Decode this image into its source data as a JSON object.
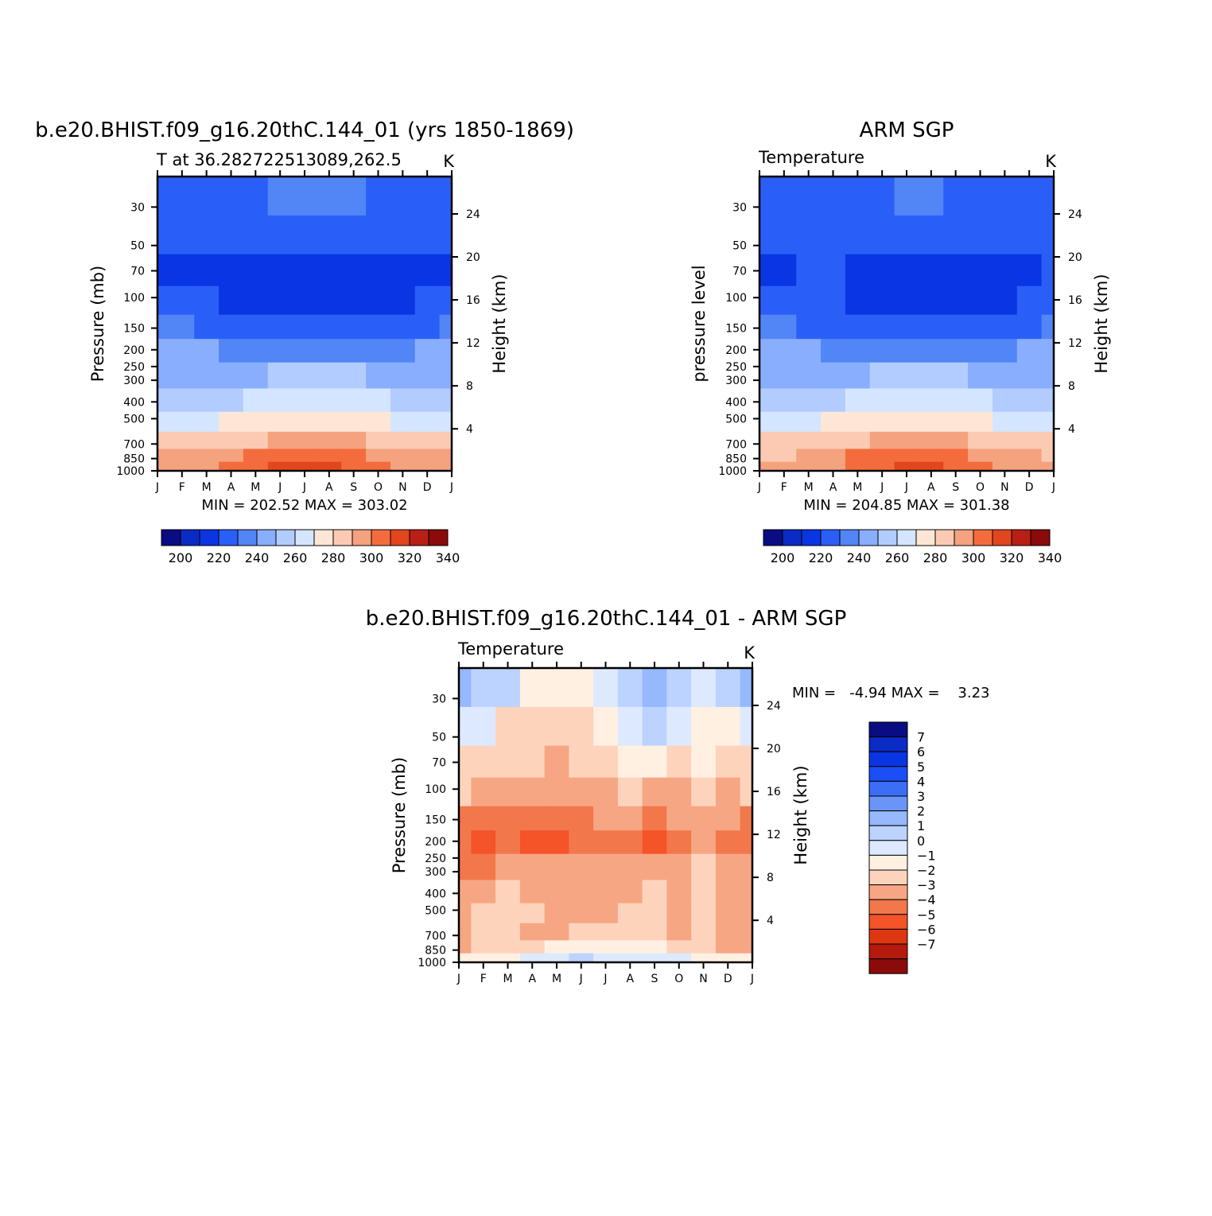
{
  "chart_data": [
    {
      "type": "heatmap",
      "title": "b.e20.BHIST.f09_g16.20thC.144_01 (yrs 1850-1869)",
      "subtitle_left": "T at 36.282722513089,262.5",
      "units": "K",
      "ylabel": "Pressure (mb)",
      "ylabel_right": "Height (km)",
      "stats": "MIN = 202.52 MAX = 303.02",
      "x": [
        "J",
        "F",
        "M",
        "A",
        "M",
        "J",
        "J",
        "A",
        "S",
        "O",
        "N",
        "D",
        "J"
      ],
      "y_pressure_ticks": [
        30,
        50,
        70,
        100,
        150,
        200,
        250,
        300,
        400,
        500,
        700,
        850,
        1000
      ],
      "y_height_ticks": [
        24,
        20,
        16,
        12,
        8,
        4
      ],
      "colorbar": {
        "colors": [
          "#0a0d82",
          "#0a2bc4",
          "#0a35e3",
          "#2a5ff7",
          "#5285f5",
          "#88aefd",
          "#b3ccff",
          "#d4e6ff",
          "#fde6d6",
          "#fccab3",
          "#f5a27e",
          "#f46c3e",
          "#e2461f",
          "#b81f15",
          "#8b0a0a"
        ],
        "labels": [
          "200",
          "220",
          "240",
          "260",
          "280",
          "300",
          "320",
          "340"
        ]
      },
      "values": [
        [
          217,
          217,
          217,
          218,
          219,
          220,
          221,
          221,
          221,
          219,
          218,
          217,
          217
        ],
        [
          212,
          212,
          212,
          212,
          212,
          212,
          212,
          212,
          212,
          212,
          213,
          214,
          214
        ],
        [
          208,
          208,
          207,
          206,
          206,
          206,
          206,
          206,
          206,
          206,
          207,
          208,
          208
        ],
        [
          212,
          212,
          211,
          209,
          207,
          206,
          206,
          206,
          206,
          206,
          208,
          210,
          212
        ],
        [
          220,
          220,
          219,
          217,
          215,
          213,
          212,
          212,
          212,
          214,
          216,
          218,
          220
        ],
        [
          230,
          230,
          230,
          229,
          228,
          227,
          227,
          227,
          227,
          228,
          229,
          230,
          230
        ],
        [
          238,
          238,
          238,
          238,
          239,
          240,
          241,
          241,
          240,
          239,
          238,
          238,
          238
        ],
        [
          247,
          247,
          248,
          249,
          250,
          252,
          253,
          253,
          252,
          250,
          248,
          247,
          247
        ],
        [
          258,
          258,
          259,
          261,
          263,
          265,
          266,
          266,
          264,
          262,
          259,
          258,
          258
        ],
        [
          272,
          272,
          273,
          276,
          279,
          282,
          283,
          283,
          281,
          277,
          274,
          272,
          272
        ],
        [
          280,
          280,
          282,
          286,
          290,
          294,
          295,
          295,
          293,
          288,
          283,
          281,
          280
        ],
        [
          284,
          284,
          286,
          290,
          295,
          300,
          302,
          302,
          299,
          293,
          288,
          285,
          284
        ]
      ]
    },
    {
      "type": "heatmap",
      "title": "ARM SGP",
      "subtitle_left": "Temperature",
      "units": "K",
      "ylabel": "pressure level",
      "ylabel_right": "Height (km)",
      "stats": "MIN = 204.85 MAX = 301.38",
      "x": [
        "J",
        "F",
        "M",
        "A",
        "M",
        "J",
        "J",
        "A",
        "S",
        "O",
        "N",
        "D",
        "J"
      ],
      "y_pressure_ticks": [
        30,
        50,
        70,
        100,
        150,
        200,
        250,
        300,
        400,
        500,
        700,
        850,
        1000
      ],
      "y_height_ticks": [
        24,
        20,
        16,
        12,
        8,
        4
      ],
      "colorbar": {
        "colors": [
          "#0a0d82",
          "#0a2bc4",
          "#0a35e3",
          "#2a5ff7",
          "#5285f5",
          "#88aefd",
          "#b3ccff",
          "#d4e6ff",
          "#fde6d6",
          "#fccab3",
          "#f5a27e",
          "#f46c3e",
          "#e2461f",
          "#b81f15",
          "#8b0a0a"
        ],
        "labels": [
          "200",
          "220",
          "240",
          "260",
          "280",
          "300",
          "320",
          "340"
        ]
      },
      "values": [
        [
          216,
          216,
          216,
          217,
          218,
          219,
          221,
          220,
          218,
          217,
          216,
          216,
          216
        ],
        [
          212,
          212,
          212,
          212,
          212,
          212,
          212,
          212,
          212,
          212,
          212,
          212,
          212
        ],
        [
          208,
          208,
          210,
          210,
          208,
          207,
          207,
          207,
          207,
          208,
          208,
          208,
          212
        ],
        [
          212,
          212,
          212,
          211,
          209,
          207,
          206,
          206,
          206,
          207,
          209,
          211,
          212
        ],
        [
          220,
          220,
          219,
          218,
          215,
          213,
          212,
          212,
          212,
          213,
          215,
          218,
          220
        ],
        [
          230,
          230,
          230,
          229,
          228,
          227,
          226,
          226,
          227,
          228,
          229,
          230,
          230
        ],
        [
          237,
          237,
          238,
          238,
          239,
          240,
          241,
          241,
          240,
          239,
          238,
          237,
          237
        ],
        [
          246,
          246,
          247,
          248,
          250,
          252,
          253,
          253,
          252,
          250,
          248,
          246,
          246
        ],
        [
          257,
          257,
          258,
          260,
          262,
          264,
          266,
          266,
          264,
          262,
          259,
          257,
          257
        ],
        [
          271,
          271,
          273,
          276,
          279,
          282,
          284,
          283,
          281,
          277,
          274,
          272,
          271
        ],
        [
          279,
          279,
          281,
          286,
          290,
          293,
          295,
          295,
          293,
          288,
          283,
          280,
          279
        ],
        [
          283,
          283,
          285,
          289,
          294,
          299,
          301,
          301,
          299,
          293,
          288,
          284,
          283
        ]
      ]
    },
    {
      "type": "heatmap",
      "title": "b.e20.BHIST.f09_g16.20thC.144_01 - ARM SGP",
      "subtitle_left": "Temperature",
      "units": "K",
      "ylabel": "Pressure (mb)",
      "ylabel_right": "Height (km)",
      "stats": "MIN =   -4.94 MAX =    3.23",
      "x": [
        "J",
        "F",
        "M",
        "A",
        "M",
        "J",
        "J",
        "A",
        "S",
        "O",
        "N",
        "D",
        "J"
      ],
      "y_pressure_ticks": [
        30,
        50,
        70,
        100,
        150,
        200,
        250,
        300,
        400,
        500,
        700,
        850,
        1000
      ],
      "y_height_ticks": [
        24,
        20,
        16,
        12,
        8,
        4
      ],
      "colorbar": {
        "colors": [
          "#0a0d82",
          "#0a2bc4",
          "#0a35e3",
          "#1b4ef7",
          "#3c6df5",
          "#6a94f8",
          "#96b8fd",
          "#bcd2ff",
          "#dde9fe",
          "#fff0e2",
          "#fdd3bc",
          "#f7a684",
          "#f2784c",
          "#f55428",
          "#dd3712",
          "#b41b0c",
          "#8b0a0a"
        ],
        "labels": [
          "7",
          "6",
          "5",
          "4",
          "3",
          "2",
          "1",
          "0",
          "−1",
          "−2",
          "−3",
          "−4",
          "−5",
          "−6",
          "−7"
        ]
      },
      "values": [
        [
          2.2,
          1.8,
          1.2,
          -0.5,
          -0.8,
          -0.5,
          0.5,
          1.0,
          2.2,
          1.6,
          0.6,
          1.0,
          2.2
        ],
        [
          0.8,
          0.3,
          -1.2,
          -1.6,
          -1.6,
          -1.2,
          -0.6,
          0.8,
          1.2,
          0.4,
          -0.6,
          -0.2,
          0.8
        ],
        [
          -1.2,
          -1.4,
          -1.8,
          -1.7,
          -2.3,
          -2.0,
          -1.4,
          -0.6,
          -0.4,
          -1.2,
          -1.0,
          -1.2,
          -1.2
        ],
        [
          -2.0,
          -2.2,
          -2.4,
          -2.2,
          -3.0,
          -2.6,
          -2.4,
          -2.0,
          -2.2,
          -2.4,
          -2.0,
          -2.2,
          -2.0
        ],
        [
          -3.1,
          -3.3,
          -3.1,
          -3.4,
          -3.6,
          -3.2,
          -2.8,
          -2.7,
          -3.2,
          -2.7,
          -2.6,
          -3.0,
          -3.1
        ],
        [
          -3.6,
          -4.2,
          -3.8,
          -4.3,
          -4.4,
          -3.6,
          -3.3,
          -3.5,
          -4.1,
          -3.3,
          -3.0,
          -3.4,
          -4.0
        ],
        [
          -3.2,
          -3.4,
          -2.8,
          -3.0,
          -2.9,
          -2.8,
          -2.6,
          -2.6,
          -2.2,
          -2.6,
          -2.0,
          -2.6,
          -3.0
        ],
        [
          -2.6,
          -2.2,
          -1.6,
          -2.2,
          -2.4,
          -2.4,
          -2.4,
          -2.2,
          -1.4,
          -2.4,
          -1.6,
          -2.2,
          -2.6
        ],
        [
          -2.3,
          -1.8,
          -1.4,
          -2.0,
          -2.2,
          -2.3,
          -2.3,
          -2.0,
          -1.4,
          -2.2,
          -2.0,
          -2.2,
          -2.3
        ],
        [
          -2.2,
          -1.6,
          -1.4,
          -2.1,
          -2.2,
          -1.6,
          -1.2,
          -1.2,
          -1.4,
          -2.2,
          -2.0,
          -2.6,
          -2.2
        ],
        [
          -2.2,
          -2.0,
          -1.8,
          -1.6,
          -0.8,
          -0.4,
          -0.3,
          -0.4,
          -0.8,
          -1.6,
          -2.0,
          -2.4,
          -2.2
        ],
        [
          -1.0,
          -0.8,
          -0.2,
          0.2,
          0.7,
          1.2,
          0.9,
          0.6,
          0.3,
          0.2,
          -0.4,
          -1.0,
          -1.0
        ]
      ]
    }
  ]
}
